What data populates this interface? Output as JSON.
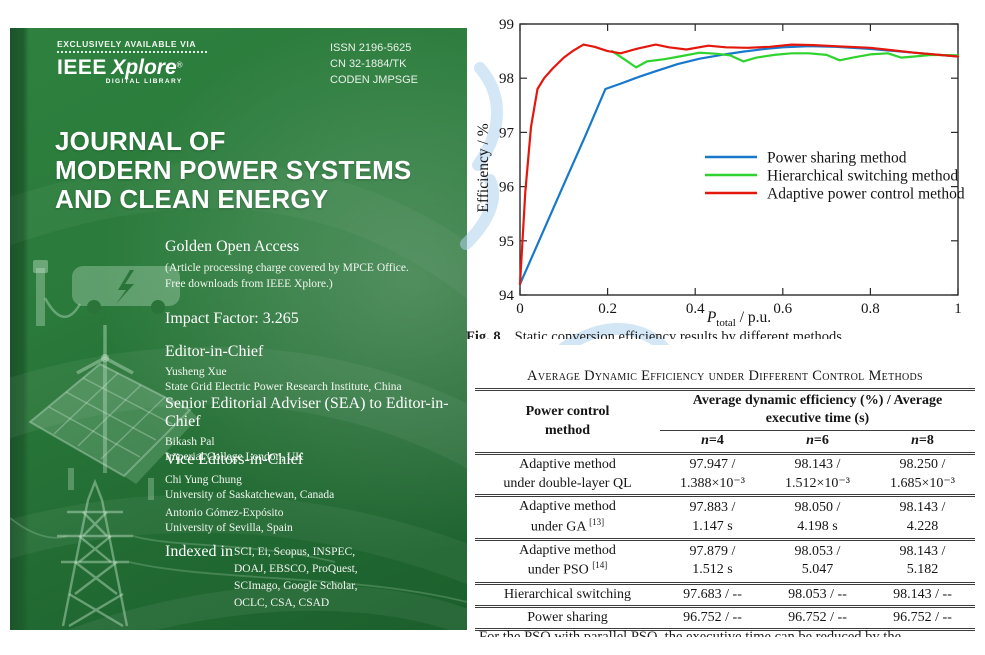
{
  "cover": {
    "header": {
      "availability": "EXCLUSIVELY AVAILABLE VIA",
      "brand_ieee": "IEEE",
      "brand_xplore": "Xplore",
      "brand_reg": "®",
      "brand_sub": "DIGITAL LIBRARY",
      "issn": "ISSN 2196-5625",
      "cn": "CN 32-1884/TK",
      "coden": "CODEN JMPSGE"
    },
    "title_lines": [
      "JOURNAL OF",
      "MODERN POWER SYSTEMS",
      "AND CLEAN ENERGY"
    ],
    "open_access": {
      "heading": "Golden Open Access",
      "note_line1": "(Article processing charge covered by MPCE Office.",
      "note_line2": "Free downloads from IEEE Xplore.)"
    },
    "impact_factor": "Impact Factor: 3.265",
    "editor_in_chief": {
      "heading": "Editor-in-Chief",
      "name": "Yusheng Xue",
      "affiliation": "State Grid Electric Power Research Institute, China"
    },
    "senior_adviser": {
      "heading": "Senior Editorial Adviser (SEA) to Editor-in-Chief",
      "name": "Bikash Pal",
      "affiliation": "Imperial College London, UK"
    },
    "vice_editors": {
      "heading": "Vice Editors-in-Chief",
      "people": [
        {
          "name": "Chi Yung Chung",
          "affiliation": "University of Saskatchewan, Canada"
        },
        {
          "name": "Antonio Gómez-Expósito",
          "affiliation": "University of Sevilla, Spain"
        }
      ]
    },
    "indexed_in": {
      "label": "Indexed in",
      "lines": [
        "SCI, Ei, Scopus, INSPEC,",
        "DOAJ, EBSCO, ProQuest,",
        "SCImago, Google Scholar,",
        "OCLC, CSA, CSAD"
      ]
    }
  },
  "chart_data": {
    "type": "line",
    "title": "",
    "xlabel": "P_total / p.u.",
    "xlabel_parts": {
      "p": "P",
      "sub": "total",
      "rest": " / p.u."
    },
    "ylabel": "Efficiency / %",
    "xlim": [
      0,
      1
    ],
    "ylim": [
      94,
      99
    ],
    "xticks": [
      0,
      0.2,
      0.4,
      0.6,
      0.8,
      1
    ],
    "xtick_labels": [
      "0",
      "0.2",
      "0.4",
      "0.6",
      "0.8",
      "1"
    ],
    "yticks": [
      94,
      95,
      96,
      97,
      98,
      99
    ],
    "ytick_labels": [
      "94",
      "95",
      "96",
      "97",
      "98",
      "99"
    ],
    "grid": false,
    "legend_position": "middle-right",
    "series": [
      {
        "name": "Power sharing method",
        "color": "#1778cc",
        "x": [
          0,
          0.05,
          0.1,
          0.15,
          0.195,
          0.23,
          0.27,
          0.31,
          0.36,
          0.41,
          0.46,
          0.51,
          0.56,
          0.6,
          0.66,
          0.72,
          0.8,
          0.9,
          1.0
        ],
        "y": [
          94.2,
          95.12,
          96.04,
          96.95,
          97.8,
          97.9,
          98.02,
          98.13,
          98.26,
          98.36,
          98.43,
          98.49,
          98.54,
          98.57,
          98.59,
          98.58,
          98.54,
          98.47,
          98.4
        ]
      },
      {
        "name": "Hierarchical switching method",
        "color": "#2ed32e",
        "x": [
          0.21,
          0.24,
          0.265,
          0.29,
          0.33,
          0.37,
          0.41,
          0.45,
          0.48,
          0.51,
          0.54,
          0.58,
          0.62,
          0.66,
          0.7,
          0.73,
          0.76,
          0.8,
          0.84,
          0.87,
          0.9,
          0.94,
          1.0
        ],
        "y": [
          98.5,
          98.34,
          98.2,
          98.31,
          98.35,
          98.41,
          98.47,
          98.45,
          98.42,
          98.31,
          98.38,
          98.43,
          98.46,
          98.46,
          98.43,
          98.33,
          98.38,
          98.44,
          98.46,
          98.38,
          98.4,
          98.43,
          98.42
        ]
      },
      {
        "name": "Adaptive power control method",
        "color": "#e4170d",
        "x": [
          0,
          0.012,
          0.025,
          0.04,
          0.055,
          0.075,
          0.1,
          0.12,
          0.145,
          0.17,
          0.2,
          0.23,
          0.27,
          0.31,
          0.34,
          0.38,
          0.43,
          0.47,
          0.52,
          0.57,
          0.62,
          0.67,
          0.72,
          0.8,
          0.9,
          1.0
        ],
        "y": [
          94.2,
          95.9,
          97.1,
          97.8,
          98.0,
          98.18,
          98.38,
          98.5,
          98.62,
          98.58,
          98.5,
          98.46,
          98.55,
          98.62,
          98.57,
          98.53,
          98.6,
          98.57,
          98.56,
          98.58,
          98.62,
          98.61,
          98.59,
          98.56,
          98.47,
          98.4
        ]
      }
    ]
  },
  "figure_caption": {
    "number": "Fig. 8",
    "text_partially_clipped": "Static conversion efficiency results by different methods"
  },
  "table": {
    "title": "Average Dynamic Efficiency under Different Control Methods",
    "col1_header": [
      "Power control",
      "method"
    ],
    "group_header": [
      "Average dynamic efficiency (%) / Average",
      "executive time (s)"
    ],
    "sub_headers": [
      {
        "var": "n",
        "rest": "=4"
      },
      {
        "var": "n",
        "rest": "=6"
      },
      {
        "var": "n",
        "rest": "=8"
      }
    ],
    "rows": [
      {
        "method": [
          "Adaptive method",
          "under double-layer QL"
        ],
        "ref": "",
        "cells": [
          [
            "97.947 /",
            "1.388×10⁻³"
          ],
          [
            "98.143 /",
            "1.512×10⁻³"
          ],
          [
            "98.250 /",
            "1.685×10⁻³"
          ]
        ]
      },
      {
        "method": [
          "Adaptive method",
          "under GA"
        ],
        "ref": "[13]",
        "cells": [
          [
            "97.883 /",
            "1.147 s"
          ],
          [
            "98.050 /",
            "4.198 s"
          ],
          [
            "98.143 /",
            "4.228"
          ]
        ]
      },
      {
        "method": [
          "Adaptive method",
          "under PSO"
        ],
        "ref": "[14]",
        "cells": [
          [
            "97.879 /",
            "1.512 s"
          ],
          [
            "98.053 /",
            "5.047"
          ],
          [
            "98.143 /",
            "5.182"
          ]
        ]
      },
      {
        "method": [
          "Hierarchical switching"
        ],
        "ref": "",
        "cells": [
          [
            "97.683 / --"
          ],
          [
            "98.053 / --"
          ],
          [
            "98.143 / --"
          ]
        ]
      },
      {
        "method": [
          "Power sharing"
        ],
        "ref": "",
        "cells": [
          [
            "96.752 / --"
          ],
          [
            "96.752 / --"
          ],
          [
            "96.752 / --"
          ]
        ]
      }
    ]
  },
  "bottom_fragment_clipped": "For the PSO with parallel PSO, the executive time can be reduced by the",
  "colors": {
    "cover_green_dark": "#1c5f2d",
    "cover_green_mid": "#2a7a3b",
    "series_blue": "#1778cc",
    "series_green": "#2ed32e",
    "series_red": "#e4170d",
    "watermark_blue": "#aed3ee",
    "table_rule": "#3c3c3c"
  }
}
